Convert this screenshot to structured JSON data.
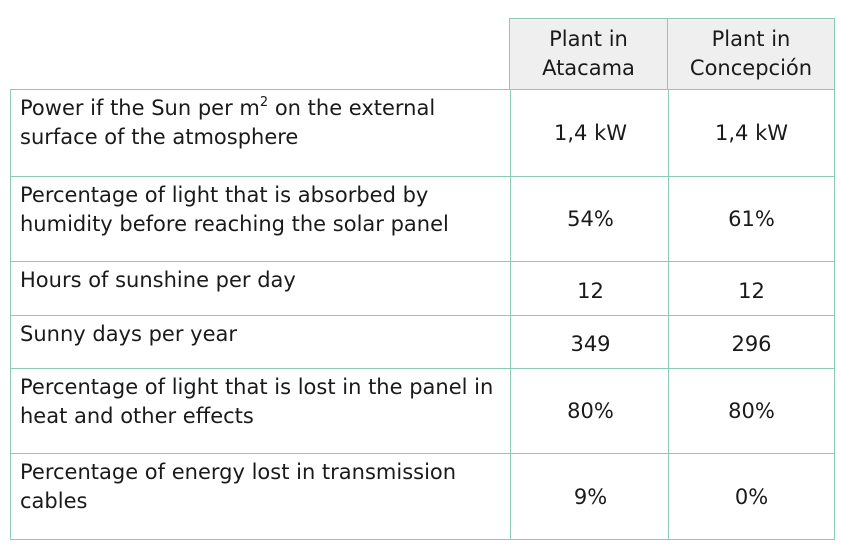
{
  "header": {
    "col1_line1": "Plant in",
    "col1_line2": "Atacama",
    "col2_line1": "Plant in",
    "col2_line2": "Concepción"
  },
  "rows": [
    {
      "label_pre": "Power if the Sun per m",
      "label_sup": "2",
      "label_post": " on the external surface of the atmosphere",
      "atacama": "1,4 kW",
      "concepcion": "1,4 kW"
    },
    {
      "label": "Percentage of light that is absorbed by humidity before reaching the solar panel",
      "atacama": "54%",
      "concepcion": "61%"
    },
    {
      "label": "Hours of sunshine per day",
      "atacama": "12",
      "concepcion": "12"
    },
    {
      "label": "Sunny days per year",
      "atacama": "349",
      "concepcion": "296"
    },
    {
      "label": "Percentage of light that is lost in the panel in heat and other effects",
      "atacama": "80%",
      "concepcion": "80%"
    },
    {
      "label": "Percentage of energy lost in transmission cables",
      "atacama": "9%",
      "concepcion": "0%"
    }
  ]
}
